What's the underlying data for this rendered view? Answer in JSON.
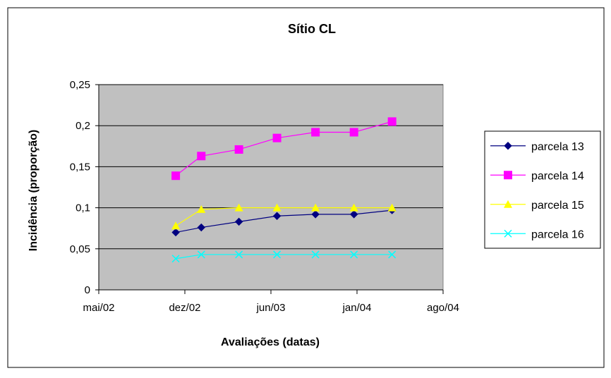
{
  "chart_data": {
    "type": "line",
    "title": "Sítio CL",
    "xlabel": "Avaliações (datas)",
    "ylabel": "Incidência (proporção)",
    "x_ticks": [
      "mai/02",
      "dez/02",
      "jun/03",
      "jan/04",
      "ago/04"
    ],
    "y_ticks": [
      "0",
      "0,05",
      "0,1",
      "0,15",
      "0,2",
      "0,25"
    ],
    "ylim": [
      0,
      0.25
    ],
    "xlim": [
      "2002-05-01",
      "2004-08-01"
    ],
    "grid": true,
    "legend_position": "right",
    "plot_background": "#c0c0c0",
    "x": [
      "2002-11-01",
      "2003-01-01",
      "2003-04-01",
      "2003-07-01",
      "2003-10-01",
      "2004-01-01",
      "2004-04-01"
    ],
    "series": [
      {
        "name": "parcela 13",
        "color": "#000080",
        "marker": "diamond",
        "values": [
          0.07,
          0.076,
          0.083,
          0.09,
          0.092,
          0.092,
          0.097
        ]
      },
      {
        "name": "parcela 14",
        "color": "#ff00ff",
        "marker": "square",
        "values": [
          0.139,
          0.163,
          0.171,
          0.185,
          0.192,
          0.192,
          0.205
        ]
      },
      {
        "name": "parcela 15",
        "color": "#ffff00",
        "marker": "triangle",
        "values": [
          0.078,
          0.098,
          0.1,
          0.1,
          0.1,
          0.1,
          0.1
        ]
      },
      {
        "name": "parcela 16",
        "color": "#00ffff",
        "marker": "x",
        "values": [
          0.038,
          0.043,
          0.043,
          0.043,
          0.043,
          0.043,
          0.043
        ]
      }
    ]
  }
}
